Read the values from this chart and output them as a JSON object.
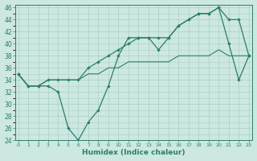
{
  "xlabel": "Humidex (Indice chaleur)",
  "x": [
    0,
    1,
    2,
    3,
    4,
    5,
    6,
    7,
    8,
    9,
    10,
    11,
    12,
    13,
    14,
    15,
    16,
    17,
    18,
    19,
    20,
    21,
    22,
    23
  ],
  "line1": [
    35,
    33,
    33,
    33,
    32,
    26,
    24,
    27,
    29,
    33,
    38,
    41,
    41,
    41,
    39,
    41,
    43,
    44,
    45,
    45,
    46,
    40,
    34,
    38
  ],
  "line2": [
    35,
    33,
    33,
    34,
    34,
    34,
    34,
    36,
    37,
    38,
    39,
    40,
    41,
    41,
    41,
    41,
    43,
    44,
    45,
    45,
    46,
    44,
    44,
    38
  ],
  "line3": [
    35,
    33,
    33,
    34,
    34,
    34,
    34,
    35,
    35,
    36,
    36,
    37,
    37,
    37,
    37,
    37,
    38,
    38,
    38,
    38,
    39,
    38,
    38,
    38
  ],
  "line_color": "#2e7d6e",
  "bg_color": "#cce8e0",
  "grid_color": "#aacfc8",
  "ylim_min": 24,
  "ylim_max": 46,
  "xlim_min": 0,
  "xlim_max": 23
}
